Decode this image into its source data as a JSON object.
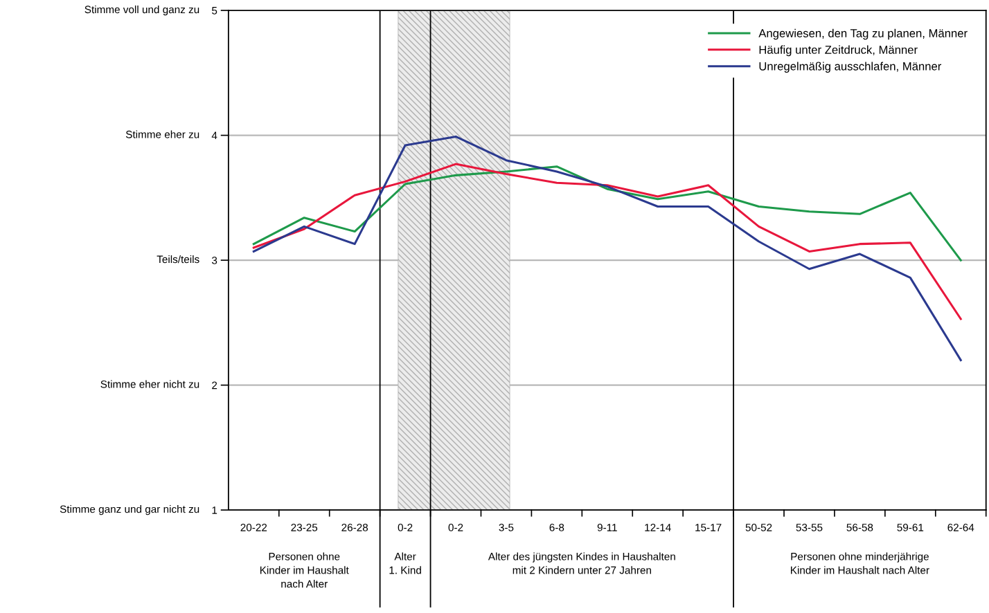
{
  "chart_data": {
    "type": "line",
    "categories": [
      "20-22",
      "23-25",
      "26-28",
      "0-2",
      "0-2",
      "3-5",
      "6-8",
      "9-11",
      "12-14",
      "15-17",
      "50-52",
      "53-55",
      "56-58",
      "59-61",
      "62-64"
    ],
    "series": [
      {
        "name": "Angewiesen, den Tag zu planen, Männer",
        "color": "#1e9a4b",
        "values": [
          3.13,
          3.34,
          3.23,
          3.61,
          3.68,
          3.71,
          3.75,
          3.57,
          3.49,
          3.55,
          3.43,
          3.39,
          3.37,
          3.54,
          3.0
        ]
      },
      {
        "name": "Häufig unter Zeitdruck, Männer",
        "color": "#e8173c",
        "values": [
          3.1,
          3.25,
          3.52,
          3.63,
          3.77,
          3.69,
          3.62,
          3.6,
          3.51,
          3.6,
          3.27,
          3.07,
          3.13,
          3.14,
          2.53
        ]
      },
      {
        "name": "Unregelmäßig ausschlafen, Männer",
        "color": "#2b3a8f",
        "values": [
          3.07,
          3.27,
          3.13,
          3.92,
          3.99,
          3.8,
          3.71,
          3.59,
          3.43,
          3.43,
          3.15,
          2.93,
          3.05,
          2.86,
          2.2
        ]
      }
    ],
    "ylim": [
      1,
      5
    ],
    "yticks": [
      1,
      2,
      3,
      4,
      5
    ],
    "grid": "y",
    "legend": "top right",
    "marker": "none",
    "line_style": "solid",
    "bands": [
      {
        "axis": "x",
        "from": "0-2",
        "to": "3-5",
        "color": "#b0b0b0"
      }
    ],
    "annotations": [
      "Stimme ganz und gar nicht zu",
      "Stimme eher nicht zu",
      "Teils/teils",
      "Stimme eher zu",
      "Stimme voll und ganz zu",
      "Personen ohne\nKinder im Haushalt\nnach Alter",
      "Alter\n1. Kind",
      "Alter des jüngsten Kindes in Haushalten\nmit 2 Kindern unter 27 Jahren",
      "Personen ohne minderjährige\nKinder im Haushalt nach Alter"
    ]
  }
}
